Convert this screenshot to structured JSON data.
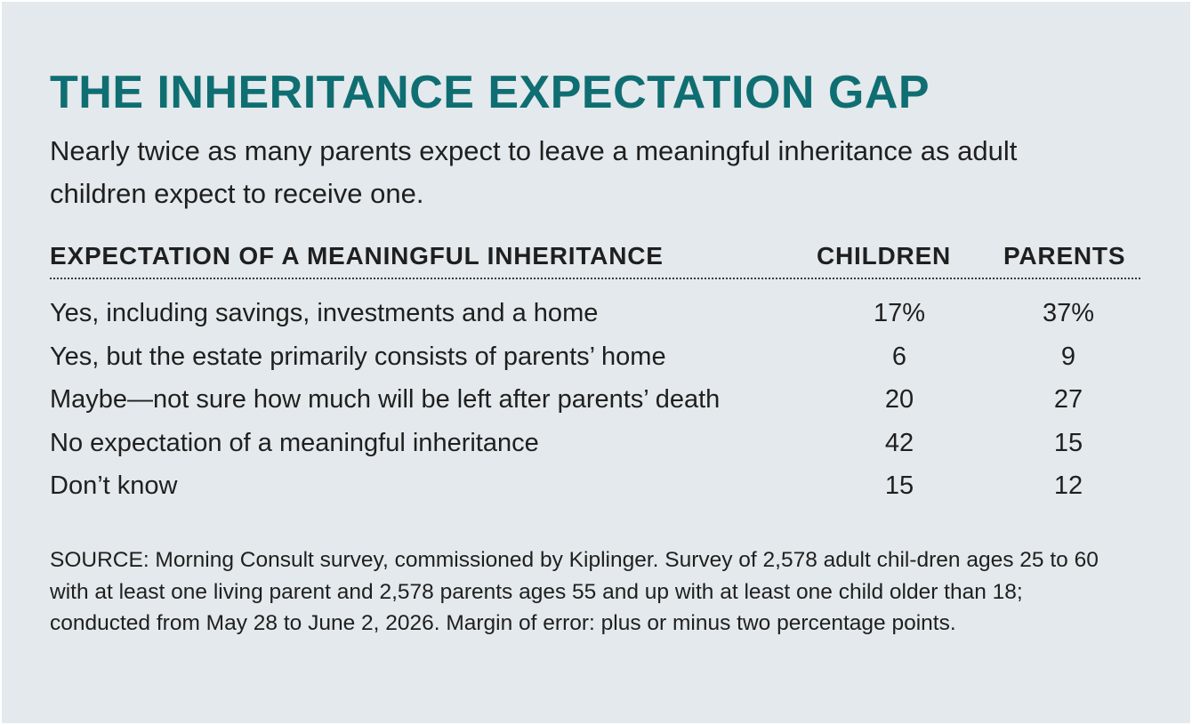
{
  "chart_data": {
    "type": "table",
    "title": "THE INHERITANCE EXPECTATION GAP",
    "subtitle": "Nearly twice as many parents expect to leave a meaningful inheritance as adult children expect to receive one.",
    "columns": [
      "EXPECTATION OF A MEANINGFUL INHERITANCE",
      "CHILDREN",
      "PARENTS"
    ],
    "rows": [
      {
        "label": "Yes, including savings, investments and a home",
        "children": "17%",
        "parents": "37%"
      },
      {
        "label": "Yes, but the estate primarily consists of parents’ home",
        "children": "6",
        "parents": "9"
      },
      {
        "label": "Maybe—not sure how much will be left after parents’ death",
        "children": "20",
        "parents": "27"
      },
      {
        "label": "No expectation of a meaningful inheritance",
        "children": "42",
        "parents": "15"
      },
      {
        "label": "Don’t know",
        "children": "15",
        "parents": "12"
      }
    ],
    "source": "SOURCE: Morning Consult survey, commissioned by Kiplinger. Survey of 2,578 adult chil-dren ages 25 to 60 with at least one living parent and 2,578 parents ages 55 and up with at least one child older than 18; conducted from May 28 to June 2, 2026. Margin of error: plus or minus two percentage points."
  },
  "colors": {
    "background": "#e3e9ec",
    "title": "#0f6e72",
    "text": "#1f1f1f"
  }
}
